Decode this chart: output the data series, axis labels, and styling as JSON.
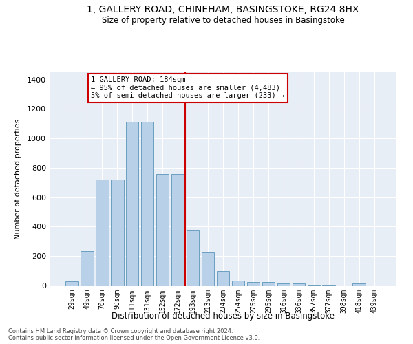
{
  "title": "1, GALLERY ROAD, CHINEHAM, BASINGSTOKE, RG24 8HX",
  "subtitle": "Size of property relative to detached houses in Basingstoke",
  "xlabel": "Distribution of detached houses by size in Basingstoke",
  "ylabel": "Number of detached properties",
  "categories": [
    "29sqm",
    "49sqm",
    "70sqm",
    "90sqm",
    "111sqm",
    "131sqm",
    "152sqm",
    "172sqm",
    "193sqm",
    "213sqm",
    "234sqm",
    "254sqm",
    "275sqm",
    "295sqm",
    "316sqm",
    "336sqm",
    "357sqm",
    "377sqm",
    "398sqm",
    "418sqm",
    "439sqm"
  ],
  "values": [
    30,
    235,
    720,
    720,
    1115,
    1115,
    760,
    760,
    375,
    225,
    100,
    35,
    22,
    22,
    15,
    13,
    5,
    5,
    0,
    12,
    0
  ],
  "bar_color": "#b8d0e8",
  "bar_edge_color": "#6a9fc0",
  "vline_x": 7.5,
  "vline_color": "#cc0000",
  "annotation_text": "1 GALLERY ROAD: 184sqm\n← 95% of detached houses are smaller (4,483)\n5% of semi-detached houses are larger (233) →",
  "annotation_box_facecolor": "#ffffff",
  "annotation_box_edgecolor": "#cc0000",
  "ylim": [
    0,
    1450
  ],
  "yticks": [
    0,
    200,
    400,
    600,
    800,
    1000,
    1200,
    1400
  ],
  "bg_color": "#e8eef6",
  "grid_color": "#ffffff",
  "title_fontsize": 10,
  "subtitle_fontsize": 8.5,
  "footnote1": "Contains HM Land Registry data © Crown copyright and database right 2024.",
  "footnote2": "Contains public sector information licensed under the Open Government Licence v3.0."
}
